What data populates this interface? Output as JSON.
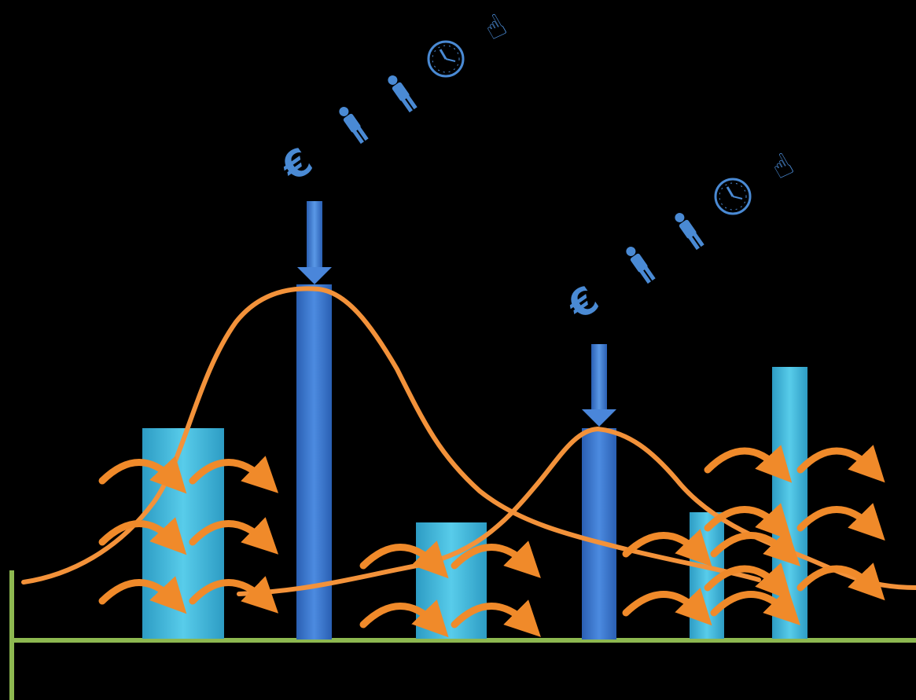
{
  "colors": {
    "background": "#000000",
    "axis": "#8DB850",
    "bar_dark": "#3B78D0",
    "bar_dark_edge": "#1F4E9A",
    "bar_light": "#3FB6D9",
    "bar_light_edge": "#2A8FB2",
    "curve": "#F3923A",
    "spread_arrow": "#F08A2A",
    "icon": "#4A8AD4"
  },
  "bars": [
    {
      "id": "bar-1",
      "kind": "light",
      "height": 0.38
    },
    {
      "id": "bar-2",
      "kind": "dark",
      "height": 0.65
    },
    {
      "id": "bar-3",
      "kind": "light",
      "height": 0.2
    },
    {
      "id": "bar-4",
      "kind": "dark",
      "height": 0.39
    },
    {
      "id": "bar-5",
      "kind": "light",
      "height": 0.23
    },
    {
      "id": "bar-6",
      "kind": "light",
      "height": 0.49
    }
  ],
  "resource_groups": [
    {
      "id": "group-1",
      "symbols": [
        "€",
        "person",
        "person",
        "clock",
        "pointing-hand"
      ]
    },
    {
      "id": "group-2",
      "symbols": [
        "€",
        "person",
        "person",
        "clock",
        "pointing-hand"
      ]
    }
  ],
  "icons": {
    "euro": "€",
    "clock": "🕓",
    "hand": "☝",
    "person": "person-icon"
  }
}
